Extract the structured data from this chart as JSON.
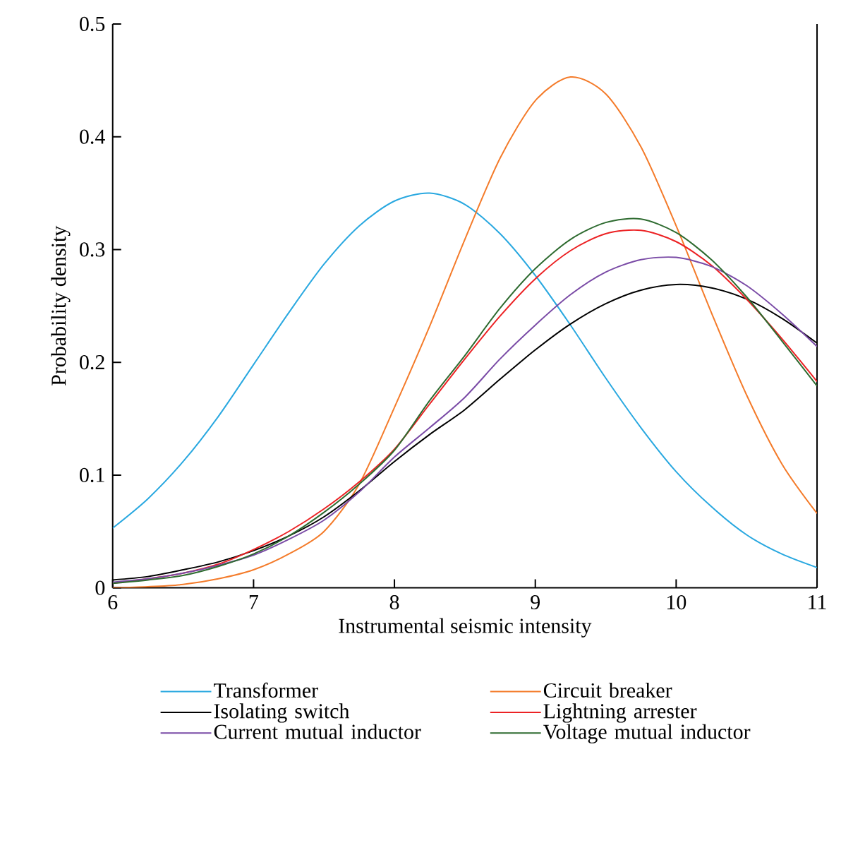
{
  "chart_data": {
    "type": "line",
    "xlabel": "Instrumental seismic intensity",
    "ylabel": "Probability density",
    "x": [
      6,
      6.25,
      6.5,
      6.75,
      7,
      7.25,
      7.5,
      7.75,
      8,
      8.25,
      8.5,
      8.75,
      9,
      9.25,
      9.5,
      9.75,
      10,
      10.25,
      10.5,
      10.75,
      11
    ],
    "series": [
      {
        "name": "Transformer",
        "color": "#29a8e0",
        "values": [
          0.053,
          0.079,
          0.112,
          0.152,
          0.198,
          0.244,
          0.287,
          0.321,
          0.343,
          0.35,
          0.34,
          0.314,
          0.277,
          0.233,
          0.186,
          0.142,
          0.103,
          0.072,
          0.047,
          0.03,
          0.018
        ]
      },
      {
        "name": "Circuit breaker",
        "color": "#f47b2a",
        "values": [
          0.0,
          0.001,
          0.003,
          0.008,
          0.016,
          0.03,
          0.05,
          0.092,
          0.16,
          0.232,
          0.309,
          0.381,
          0.432,
          0.453,
          0.438,
          0.391,
          0.321,
          0.244,
          0.171,
          0.11,
          0.066
        ]
      },
      {
        "name": "Isolating switch",
        "color": "#000000",
        "values": [
          0.007,
          0.01,
          0.016,
          0.023,
          0.033,
          0.046,
          0.063,
          0.086,
          0.112,
          0.136,
          0.158,
          0.185,
          0.211,
          0.234,
          0.252,
          0.264,
          0.269,
          0.266,
          0.256,
          0.239,
          0.217
        ]
      },
      {
        "name": "Lightning arrester",
        "color": "#ec2224",
        "values": [
          0.004,
          0.008,
          0.013,
          0.021,
          0.034,
          0.05,
          0.07,
          0.094,
          0.123,
          0.163,
          0.203,
          0.241,
          0.274,
          0.299,
          0.314,
          0.317,
          0.307,
          0.286,
          0.256,
          0.221,
          0.183
        ]
      },
      {
        "name": "Current mutual inductor",
        "color": "#7a4ba6",
        "values": [
          0.005,
          0.008,
          0.013,
          0.02,
          0.029,
          0.043,
          0.06,
          0.085,
          0.116,
          0.142,
          0.169,
          0.203,
          0.233,
          0.26,
          0.28,
          0.291,
          0.293,
          0.285,
          0.268,
          0.243,
          0.214
        ]
      },
      {
        "name": "Voltage mutual inductor",
        "color": "#2e6b30",
        "values": [
          0.004,
          0.007,
          0.011,
          0.019,
          0.03,
          0.046,
          0.067,
          0.092,
          0.122,
          0.166,
          0.206,
          0.248,
          0.283,
          0.309,
          0.324,
          0.327,
          0.315,
          0.291,
          0.258,
          0.219,
          0.179
        ]
      }
    ],
    "xlim": [
      6,
      11
    ],
    "ylim": [
      0,
      0.5
    ],
    "xticks": [
      6,
      7,
      8,
      9,
      10,
      11
    ],
    "yticks": [
      0,
      0.1,
      0.2,
      0.3,
      0.4,
      0.5
    ],
    "legend": "bottom",
    "grid": false,
    "marker": "none",
    "line_style": "solid"
  }
}
